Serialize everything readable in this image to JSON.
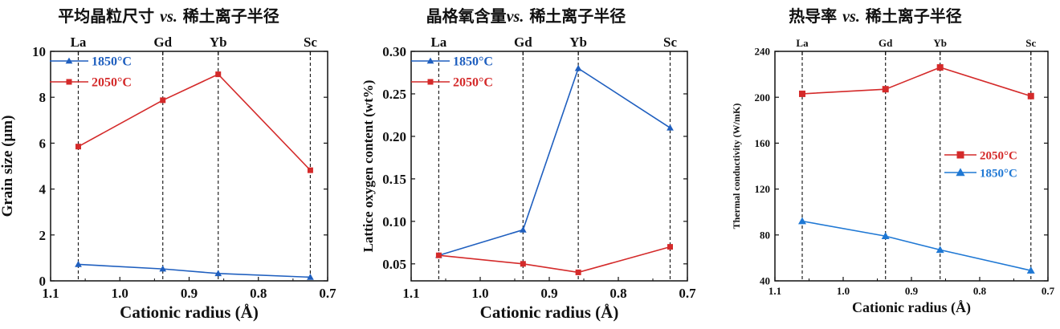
{
  "chart_data": [
    {
      "type": "line",
      "title": "平均晶粒尺寸",
      "title_vs": "vs.",
      "title_suffix": "稀土离子半径",
      "xlabel": "Cationic radius (Å)",
      "ylabel": "Grain size (μm)",
      "xlim": [
        1.1,
        0.7
      ],
      "ylim": [
        0,
        10
      ],
      "xticks": [
        1.1,
        1.0,
        0.9,
        0.8,
        0.7
      ],
      "xtick_labels": [
        "1.1",
        "1.0",
        "0.9",
        "0.8",
        "0.7"
      ],
      "yticks": [
        0,
        2,
        4,
        6,
        8,
        10
      ],
      "ytick_labels": [
        "0",
        "2",
        "4",
        "6",
        "8",
        "10"
      ],
      "elements": [
        {
          "label": "La",
          "x": 1.06
        },
        {
          "label": "Gd",
          "x": 0.938
        },
        {
          "label": "Yb",
          "x": 0.858
        },
        {
          "label": "Sc",
          "x": 0.725
        }
      ],
      "legend_position": "top-left",
      "series": [
        {
          "name": "1850°C",
          "color": "#1f5fbf",
          "marker": "triangle",
          "x": [
            1.06,
            0.938,
            0.858,
            0.725
          ],
          "y": [
            0.72,
            0.52,
            0.32,
            0.16
          ]
        },
        {
          "name": "2050°C",
          "color": "#d42a2a",
          "marker": "square",
          "x": [
            1.06,
            0.938,
            0.858,
            0.725
          ],
          "y": [
            5.85,
            7.87,
            9.0,
            4.82
          ]
        }
      ]
    },
    {
      "type": "line",
      "title": "晶格氧含量",
      "title_vs": "vs.",
      "title_suffix": "稀土离子半径",
      "xlabel": "Cationic radius (Å)",
      "ylabel": "Lattice oxygen content (wt%)",
      "xlim": [
        1.1,
        0.7
      ],
      "ylim": [
        0.03,
        0.3
      ],
      "xticks": [
        1.1,
        1.0,
        0.9,
        0.8,
        0.7
      ],
      "xtick_labels": [
        "1.1",
        "1.0",
        "0.9",
        "0.8",
        "0.7"
      ],
      "yticks": [
        0.05,
        0.1,
        0.15,
        0.2,
        0.25,
        0.3
      ],
      "ytick_labels": [
        "0.05",
        "0.10",
        "0.15",
        "0.20",
        "0.25",
        "0.30"
      ],
      "elements": [
        {
          "label": "La",
          "x": 1.06
        },
        {
          "label": "Gd",
          "x": 0.938
        },
        {
          "label": "Yb",
          "x": 0.858
        },
        {
          "label": "Sc",
          "x": 0.725
        }
      ],
      "legend_position": "top-left",
      "series": [
        {
          "name": "1850°C",
          "color": "#1f5fbf",
          "marker": "triangle",
          "x": [
            1.06,
            0.938,
            0.858,
            0.725
          ],
          "y": [
            0.06,
            0.09,
            0.28,
            0.21
          ]
        },
        {
          "name": "2050°C",
          "color": "#d42a2a",
          "marker": "square",
          "x": [
            1.06,
            0.938,
            0.858,
            0.725
          ],
          "y": [
            0.06,
            0.05,
            0.04,
            0.07
          ]
        }
      ]
    },
    {
      "type": "line",
      "title": "热导率",
      "title_vs": "vs.",
      "title_suffix": "稀土离子半径",
      "xlabel": "Cationic radius (Å)",
      "ylabel": "Thermal conductivity (W/mK)",
      "xlim": [
        1.1,
        0.7
      ],
      "ylim": [
        40,
        240
      ],
      "xticks": [
        1.1,
        1.0,
        0.9,
        0.8,
        0.7
      ],
      "xtick_labels": [
        "1.1",
        "1.0",
        "0.9",
        "0.8",
        "0.7"
      ],
      "yticks": [
        40,
        80,
        120,
        160,
        200,
        240
      ],
      "ytick_labels": [
        "40",
        "80",
        "120",
        "160",
        "200",
        "240"
      ],
      "elements": [
        {
          "label": "La",
          "x": 1.06
        },
        {
          "label": "Gd",
          "x": 0.938
        },
        {
          "label": "Yb",
          "x": 0.858
        },
        {
          "label": "Sc",
          "x": 0.725
        }
      ],
      "legend_position": "center-right",
      "series": [
        {
          "name": "2050°C",
          "color": "#d42a2a",
          "marker": "square",
          "x": [
            1.06,
            0.938,
            0.858,
            0.725
          ],
          "y": [
            203,
            207,
            226,
            201
          ]
        },
        {
          "name": "1850°C",
          "color": "#1f78d4",
          "marker": "triangle",
          "x": [
            1.06,
            0.938,
            0.858,
            0.725
          ],
          "y": [
            92,
            79,
            67,
            49
          ]
        }
      ]
    }
  ]
}
